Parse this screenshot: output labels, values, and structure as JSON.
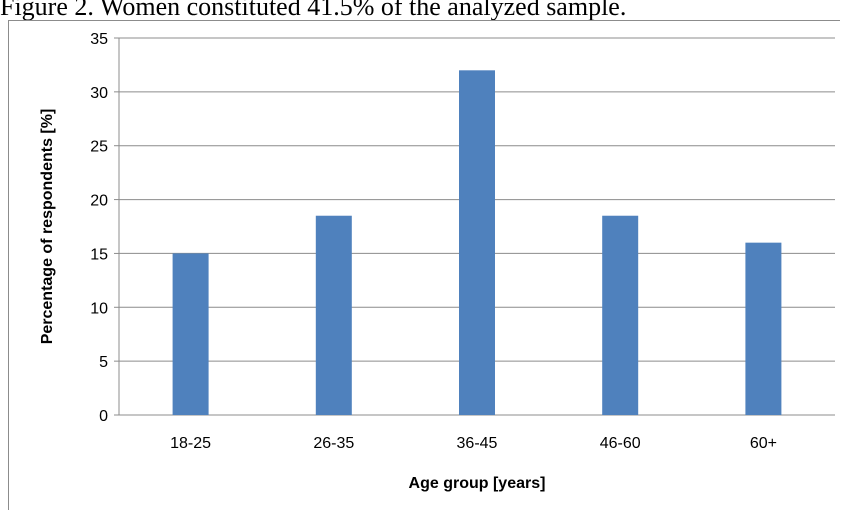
{
  "caption": "Figure 2.  Women constituted 41.5% of the analyzed sample.",
  "chart_data": {
    "type": "bar",
    "categories": [
      "18-25",
      "26-35",
      "36-45",
      "46-60",
      "60+"
    ],
    "values": [
      15,
      18.5,
      32,
      18.5,
      16
    ],
    "title": "",
    "xlabel": "Age group [years]",
    "ylabel": "Percentage of respondents [%]",
    "ylim": [
      0,
      35
    ],
    "yticks": [
      0,
      5,
      10,
      15,
      20,
      25,
      30,
      35
    ],
    "grid": true,
    "bar_color": "#4f81bd",
    "grid_color": "#8c8c8c"
  }
}
